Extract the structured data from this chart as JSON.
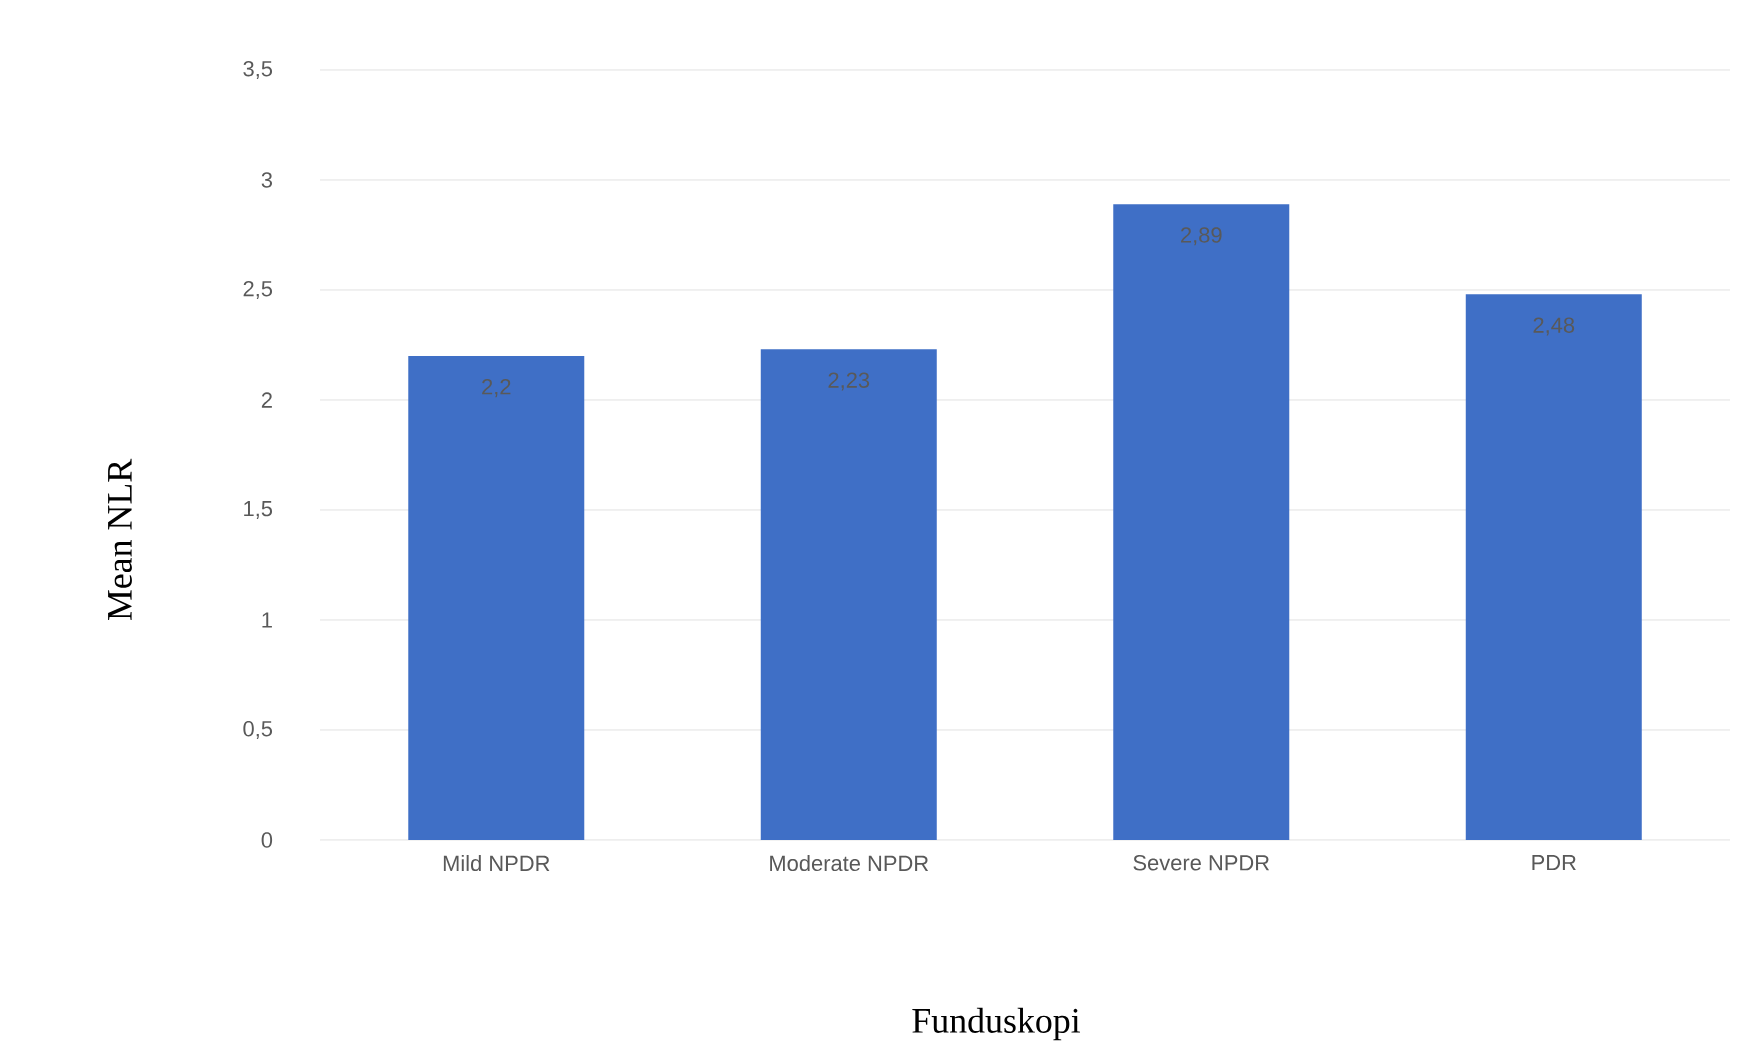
{
  "chart_data": {
    "type": "bar",
    "xlabel": "Funduskopi",
    "ylabel": "Mean NLR",
    "categories": [
      "Mild NPDR",
      "Moderate NPDR",
      "Severe NPDR",
      "PDR"
    ],
    "values": [
      2.2,
      2.23,
      2.89,
      2.48
    ],
    "value_labels": [
      "2,2",
      "2,23",
      "2,89",
      "2,48"
    ],
    "color": "#3f6fc6",
    "ylim": [
      0,
      3.5
    ],
    "yticks": [
      {
        "value": 0,
        "label": "0"
      },
      {
        "value": 0.5,
        "label": "0,5"
      },
      {
        "value": 1,
        "label": "1"
      },
      {
        "value": 1.5,
        "label": "1,5"
      },
      {
        "value": 2,
        "label": "2"
      },
      {
        "value": 2.5,
        "label": "2,5"
      },
      {
        "value": 3,
        "label": "3"
      },
      {
        "value": 3.5,
        "label": "3,5"
      }
    ],
    "grid": "y"
  }
}
